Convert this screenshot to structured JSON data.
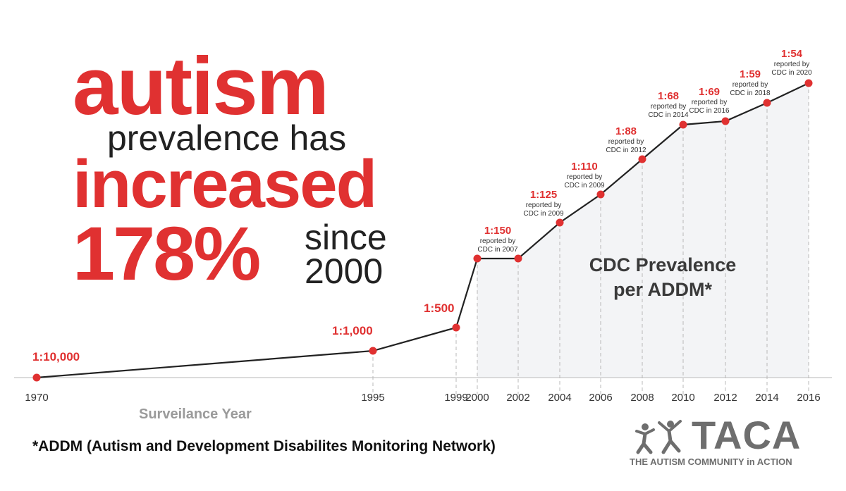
{
  "headline": {
    "line1": "autism",
    "line2": "prevalence has",
    "line3": "increased",
    "line4_pct": "178%",
    "line4_since": "since",
    "line4_year": "2000"
  },
  "chart_data": {
    "type": "line",
    "title": "CDC Prevalence per ADDM*",
    "xlabel": "Surveilance Year",
    "x_ticks": [
      "1970",
      "1995",
      "1999",
      "2000",
      "2002",
      "2004",
      "2006",
      "2008",
      "2010",
      "2012",
      "2014",
      "2016"
    ],
    "points": [
      {
        "year": "1970",
        "label": "1:10,000",
        "note": ""
      },
      {
        "year": "1995",
        "label": "1:1,000",
        "note": ""
      },
      {
        "year": "1999",
        "label": "1:500",
        "note": ""
      },
      {
        "year": "2000",
        "label": "1:150",
        "note": "reported by CDC in 2007"
      },
      {
        "year": "2002",
        "label": "1:150",
        "note": ""
      },
      {
        "year": "2004",
        "label": "1:125",
        "note": "reported by CDC in 2009"
      },
      {
        "year": "2006",
        "label": "1:110",
        "note": "reported by CDC in 2009"
      },
      {
        "year": "2008",
        "label": "1:88",
        "note": "reported by CDC in 2012"
      },
      {
        "year": "2010",
        "label": "1:68",
        "note": "reported by CDC in 2014"
      },
      {
        "year": "2012",
        "label": "1:69",
        "note": "reported by CDC in 2016"
      },
      {
        "year": "2014",
        "label": "1:59",
        "note": "reported by CDC in 2018"
      },
      {
        "year": "2016",
        "label": "1:54",
        "note": "reported by CDC in 2020"
      }
    ],
    "grid": false,
    "colors": {
      "line": "#222222",
      "marker": "#e03131",
      "label": "#e03131",
      "shade": "#f3f4f6"
    }
  },
  "footnote": "*ADDM (Autism and Development Disabilites Monitoring Network)",
  "logo": {
    "name": "TACA",
    "tagline": "THE AUTISM COMMUNITY in ACTION"
  }
}
